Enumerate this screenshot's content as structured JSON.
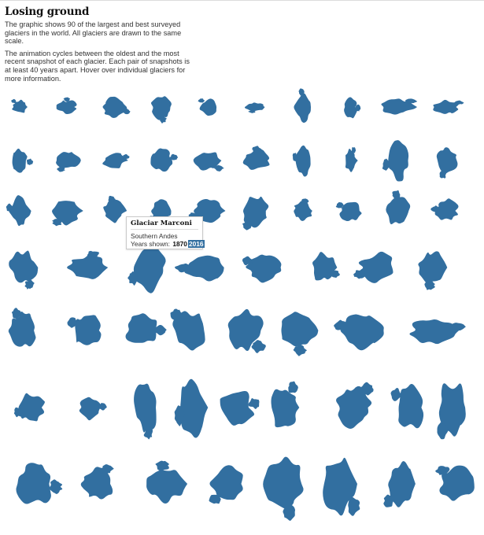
{
  "header": {
    "title": "Losing ground",
    "paragraph1": "The graphic shows 90 of the largest and best surveyed glaciers in the world. All glaciers are drawn to the same scale.",
    "paragraph2": "The animation cycles between the oldest and the most recent snapshot of each glacier. Each pair of snapshots is at least 40 years apart. Hover over individual glaciers for more information."
  },
  "glacier_color": "#326fa0",
  "glacier_grid": {
    "rows_visible": 7,
    "columns": 10,
    "shape_style": "irregular-blue-silhouette"
  },
  "tooltip": {
    "name": "Glaciar Marconi",
    "region": "Southern Andes",
    "years_label": "Years shown:",
    "year_oldest": "1870",
    "year_recent": "2016"
  }
}
